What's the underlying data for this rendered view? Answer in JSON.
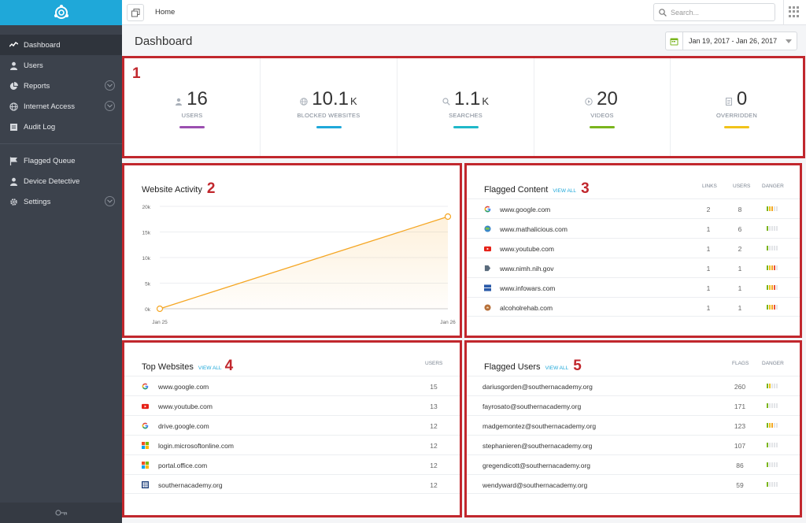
{
  "topbar": {
    "breadcrumb": "Home",
    "search_placeholder": "Search..."
  },
  "sidebar": {
    "items": [
      {
        "label": "Dashboard",
        "icon": "activity-icon",
        "active": true
      },
      {
        "label": "Users",
        "icon": "user-icon"
      },
      {
        "label": "Reports",
        "icon": "pie-chart-icon",
        "expandable": true
      },
      {
        "label": "Internet Access",
        "icon": "globe-icon",
        "expandable": true
      },
      {
        "label": "Audit Log",
        "icon": "log-icon"
      }
    ],
    "items2": [
      {
        "label": "Flagged Queue",
        "icon": "flag-icon"
      },
      {
        "label": "Device Detective",
        "icon": "user-icon"
      },
      {
        "label": "Settings",
        "icon": "gear-icon",
        "expandable": true
      }
    ]
  },
  "page": {
    "title": "Dashboard",
    "date_range": "Jan 19, 2017 - Jan 26, 2017"
  },
  "callouts": [
    "1",
    "2",
    "3",
    "4",
    "5"
  ],
  "stats": [
    {
      "value": "16",
      "unit": "",
      "label": "USERS",
      "color": "#9b4fb0",
      "icon": "user-icon"
    },
    {
      "value": "10.1",
      "unit": "K",
      "label": "BLOCKED WEBSITES",
      "color": "#1fa8d9",
      "icon": "globe-icon"
    },
    {
      "value": "1.1",
      "unit": "K",
      "label": "SEARCHES",
      "color": "#1fb8c9",
      "icon": "search-icon"
    },
    {
      "value": "20",
      "unit": "",
      "label": "VIDEOS",
      "color": "#7ab51d",
      "icon": "play-icon"
    },
    {
      "value": "0",
      "unit": "",
      "label": "OVERRIDDEN",
      "color": "#f1c31a",
      "icon": "document-icon"
    }
  ],
  "website_activity": {
    "title": "Website Activity"
  },
  "chart_data": {
    "type": "area",
    "categories": [
      "Jan 25",
      "Jan 26"
    ],
    "values": [
      0,
      18000
    ],
    "yticks": [
      "0k",
      "5k",
      "10k",
      "15k",
      "20k"
    ],
    "ylim": [
      0,
      20000
    ],
    "color": "#f5a623",
    "grid": true
  },
  "flagged_content": {
    "title": "Flagged Content",
    "view_all": "VIEW ALL",
    "col_links": "LINKS",
    "col_users": "USERS",
    "col_danger": "DANGER",
    "rows": [
      {
        "site": "www.google.com",
        "links": "2",
        "users": "8",
        "danger": 3,
        "icon": "google-icon"
      },
      {
        "site": "www.mathalicious.com",
        "links": "1",
        "users": "6",
        "danger": 1,
        "icon": "globe-icon"
      },
      {
        "site": "www.youtube.com",
        "links": "1",
        "users": "2",
        "danger": 1,
        "icon": "youtube-icon"
      },
      {
        "site": "www.nimh.nih.gov",
        "links": "1",
        "users": "1",
        "danger": 4,
        "icon": "nih-icon"
      },
      {
        "site": "www.infowars.com",
        "links": "1",
        "users": "1",
        "danger": 4,
        "icon": "infowars-icon"
      },
      {
        "site": "alcoholrehab.com",
        "links": "1",
        "users": "1",
        "danger": 4,
        "icon": "rehab-icon"
      }
    ]
  },
  "top_websites": {
    "title": "Top Websites",
    "view_all": "VIEW ALL",
    "col_users": "USERS",
    "rows": [
      {
        "site": "www.google.com",
        "users": "15",
        "icon": "google-icon"
      },
      {
        "site": "www.youtube.com",
        "users": "13",
        "icon": "youtube-icon"
      },
      {
        "site": "drive.google.com",
        "users": "12",
        "icon": "google-icon"
      },
      {
        "site": "login.microsoftonline.com",
        "users": "12",
        "icon": "microsoft-icon"
      },
      {
        "site": "portal.office.com",
        "users": "12",
        "icon": "microsoft-icon"
      },
      {
        "site": "southernacademy.org",
        "users": "12",
        "icon": "grid-icon"
      }
    ]
  },
  "flagged_users": {
    "title": "Flagged Users",
    "view_all": "VIEW ALL",
    "col_flags": "FLAGS",
    "col_danger": "DANGER",
    "rows": [
      {
        "user": "dariusgorden@southernacademy.org",
        "flags": "260",
        "danger": 2
      },
      {
        "user": "fayrosato@southernacademy.org",
        "flags": "171",
        "danger": 1
      },
      {
        "user": "madgemontez@southernacademy.org",
        "flags": "123",
        "danger": 3
      },
      {
        "user": "stephanieren@southernacademy.org",
        "flags": "107",
        "danger": 1
      },
      {
        "user": "gregendicott@southernacademy.org",
        "flags": "86",
        "danger": 1
      },
      {
        "user": "wendyward@southernacademy.org",
        "flags": "59",
        "danger": 1
      }
    ]
  }
}
